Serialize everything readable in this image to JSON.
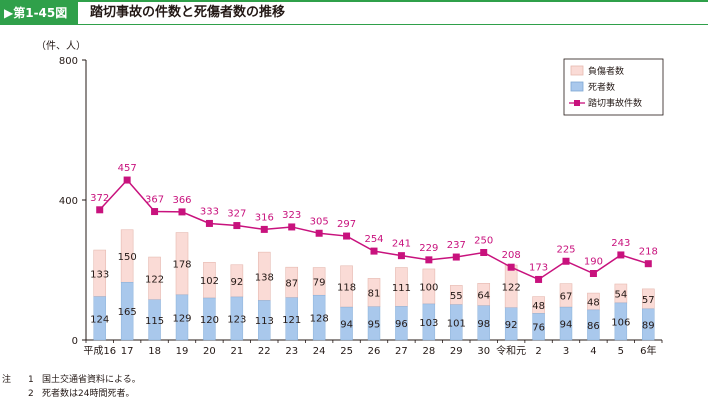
{
  "header": {
    "figure_label": "▶第1-45図",
    "title": "踏切事故の件数と死傷者数の推移"
  },
  "chart_data": {
    "type": "bar",
    "unit_label": "（件、人）",
    "categories": [
      "平成16",
      "17",
      "18",
      "19",
      "20",
      "21",
      "22",
      "23",
      "24",
      "25",
      "26",
      "27",
      "28",
      "29",
      "30",
      "令和元",
      "2",
      "3",
      "4",
      "5",
      "6年"
    ],
    "series": [
      {
        "name": "死者数",
        "kind": "bar",
        "values": [
          124,
          165,
          115,
          129,
          120,
          123,
          113,
          121,
          128,
          94,
          95,
          96,
          103,
          101,
          98,
          92,
          76,
          94,
          86,
          106,
          89
        ]
      },
      {
        "name": "負傷者数",
        "kind": "bar",
        "values": [
          133,
          150,
          122,
          178,
          102,
          92,
          138,
          87,
          79,
          118,
          81,
          111,
          100,
          55,
          64,
          122,
          48,
          67,
          48,
          54,
          57
        ]
      },
      {
        "name": "踏切事故件数",
        "kind": "line",
        "values": [
          372,
          457,
          367,
          366,
          333,
          327,
          316,
          323,
          305,
          297,
          254,
          241,
          229,
          237,
          250,
          208,
          173,
          225,
          190,
          243,
          218
        ]
      }
    ],
    "yticks": [
      0,
      400,
      800
    ],
    "ylim": [
      0,
      800
    ],
    "legend_position": "top-right",
    "colors": {
      "deaths": "#a9c8ec",
      "injuries": "#fadbd6",
      "bar_edge": "#e6b9b0",
      "line": "#c8127d",
      "line_label": "#c8127d",
      "axis": "#231815"
    }
  },
  "notes": [
    {
      "prefix": "注",
      "num": "1",
      "text": "国土交通省資料による。"
    },
    {
      "prefix": "",
      "num": "2",
      "text": "死者数は24時間死者。"
    }
  ]
}
